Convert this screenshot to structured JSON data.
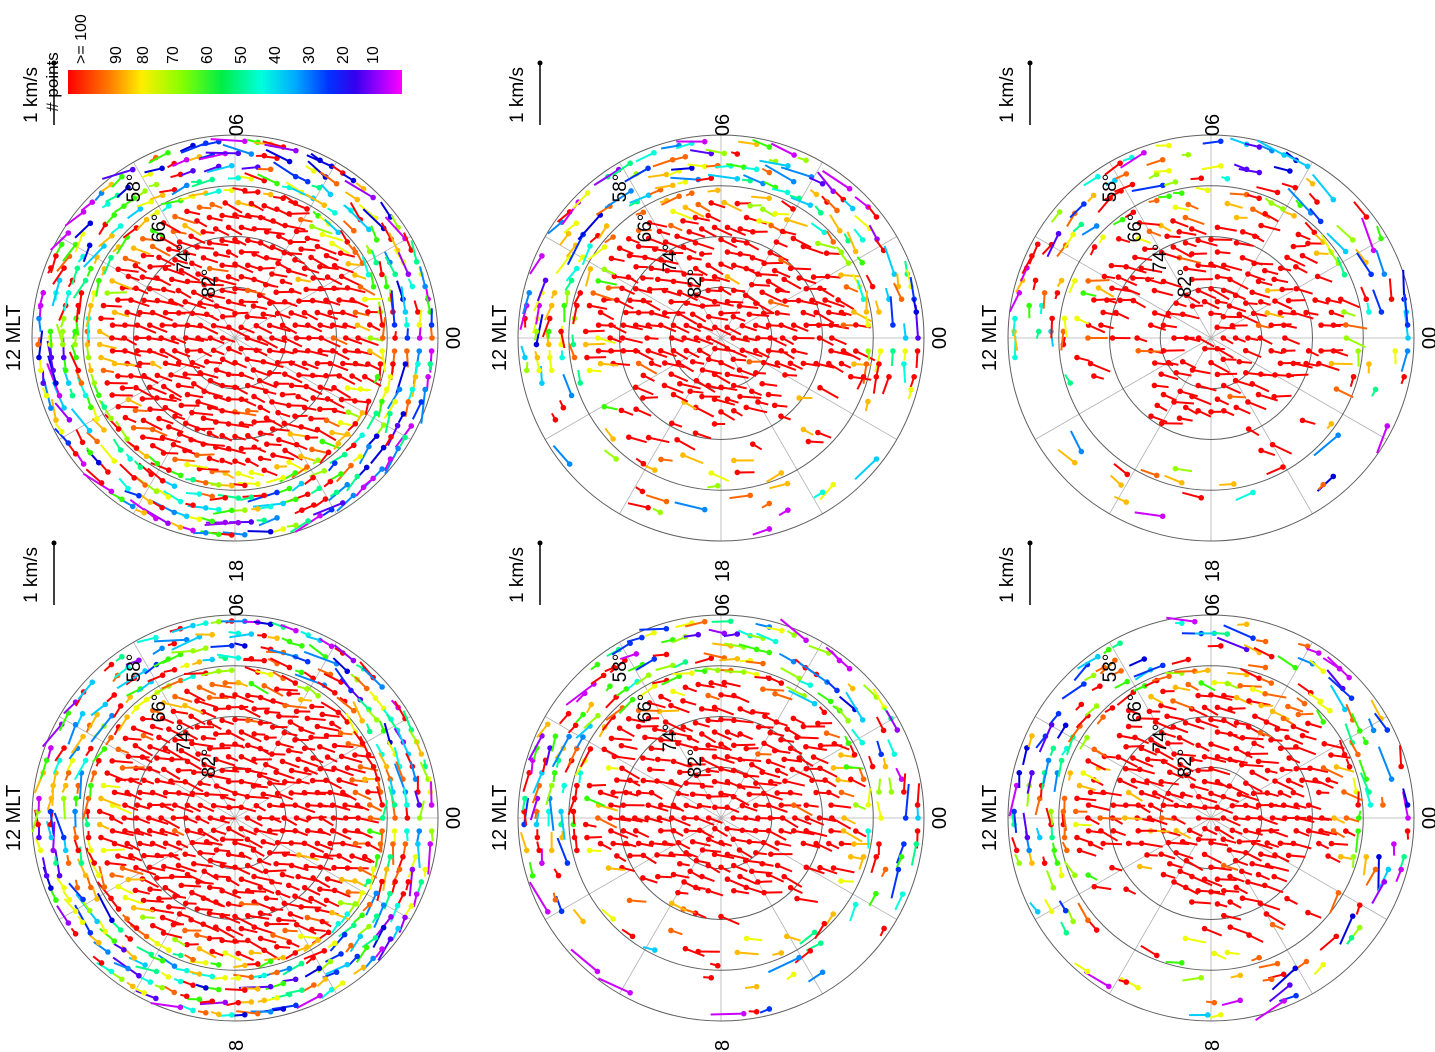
{
  "figure": {
    "orientation": "rotated 90 degrees counter-clockwise",
    "rows": 2,
    "cols": 3
  },
  "colorbar": {
    "title": "# points",
    "ticks": [
      ">= 100",
      "90",
      "80",
      "70",
      "60",
      "50",
      "40",
      "30",
      "20",
      "10"
    ],
    "colors": [
      "#ff0000",
      "#ff6600",
      "#ffcc00",
      "#ccff00",
      "#66ff00",
      "#00ff66",
      "#00ffff",
      "#0066ff",
      "#0000ee",
      "#6600ff",
      "#cc00ff",
      "#ff00ff"
    ]
  },
  "panel_labels": {
    "noon": "12 MLT",
    "dawn": "06",
    "dusk": "18",
    "midnight": "00",
    "scale": "1 km/s",
    "latitudes": [
      "82°",
      "74°",
      "66°",
      "58°"
    ]
  },
  "chart_data": [
    {
      "type": "vector-polar",
      "panel": "top-right",
      "coverage": "full",
      "lat_min": 58,
      "flow": "two-cell convection",
      "fill": 0.85
    },
    {
      "type": "vector-polar",
      "panel": "top-left",
      "coverage": "full",
      "lat_min": 58,
      "flow": "two-cell convection",
      "fill": 0.85
    },
    {
      "type": "vector-polar",
      "panel": "middle-right",
      "coverage": "partial (dawn-noon-dusk sector)",
      "lat_min": 58,
      "flow": "two-cell convection",
      "fill": 0.55
    },
    {
      "type": "vector-polar",
      "panel": "middle-left",
      "coverage": "partial",
      "lat_min": 58,
      "flow": "two-cell convection",
      "fill": 0.55
    },
    {
      "type": "vector-polar",
      "panel": "bottom-right",
      "coverage": "sparse (dawn sector)",
      "lat_min": 58,
      "flow": "two-cell convection",
      "fill": 0.35
    },
    {
      "type": "vector-polar",
      "panel": "bottom-left",
      "coverage": "partial",
      "lat_min": 58,
      "flow": "two-cell convection",
      "fill": 0.5
    }
  ]
}
